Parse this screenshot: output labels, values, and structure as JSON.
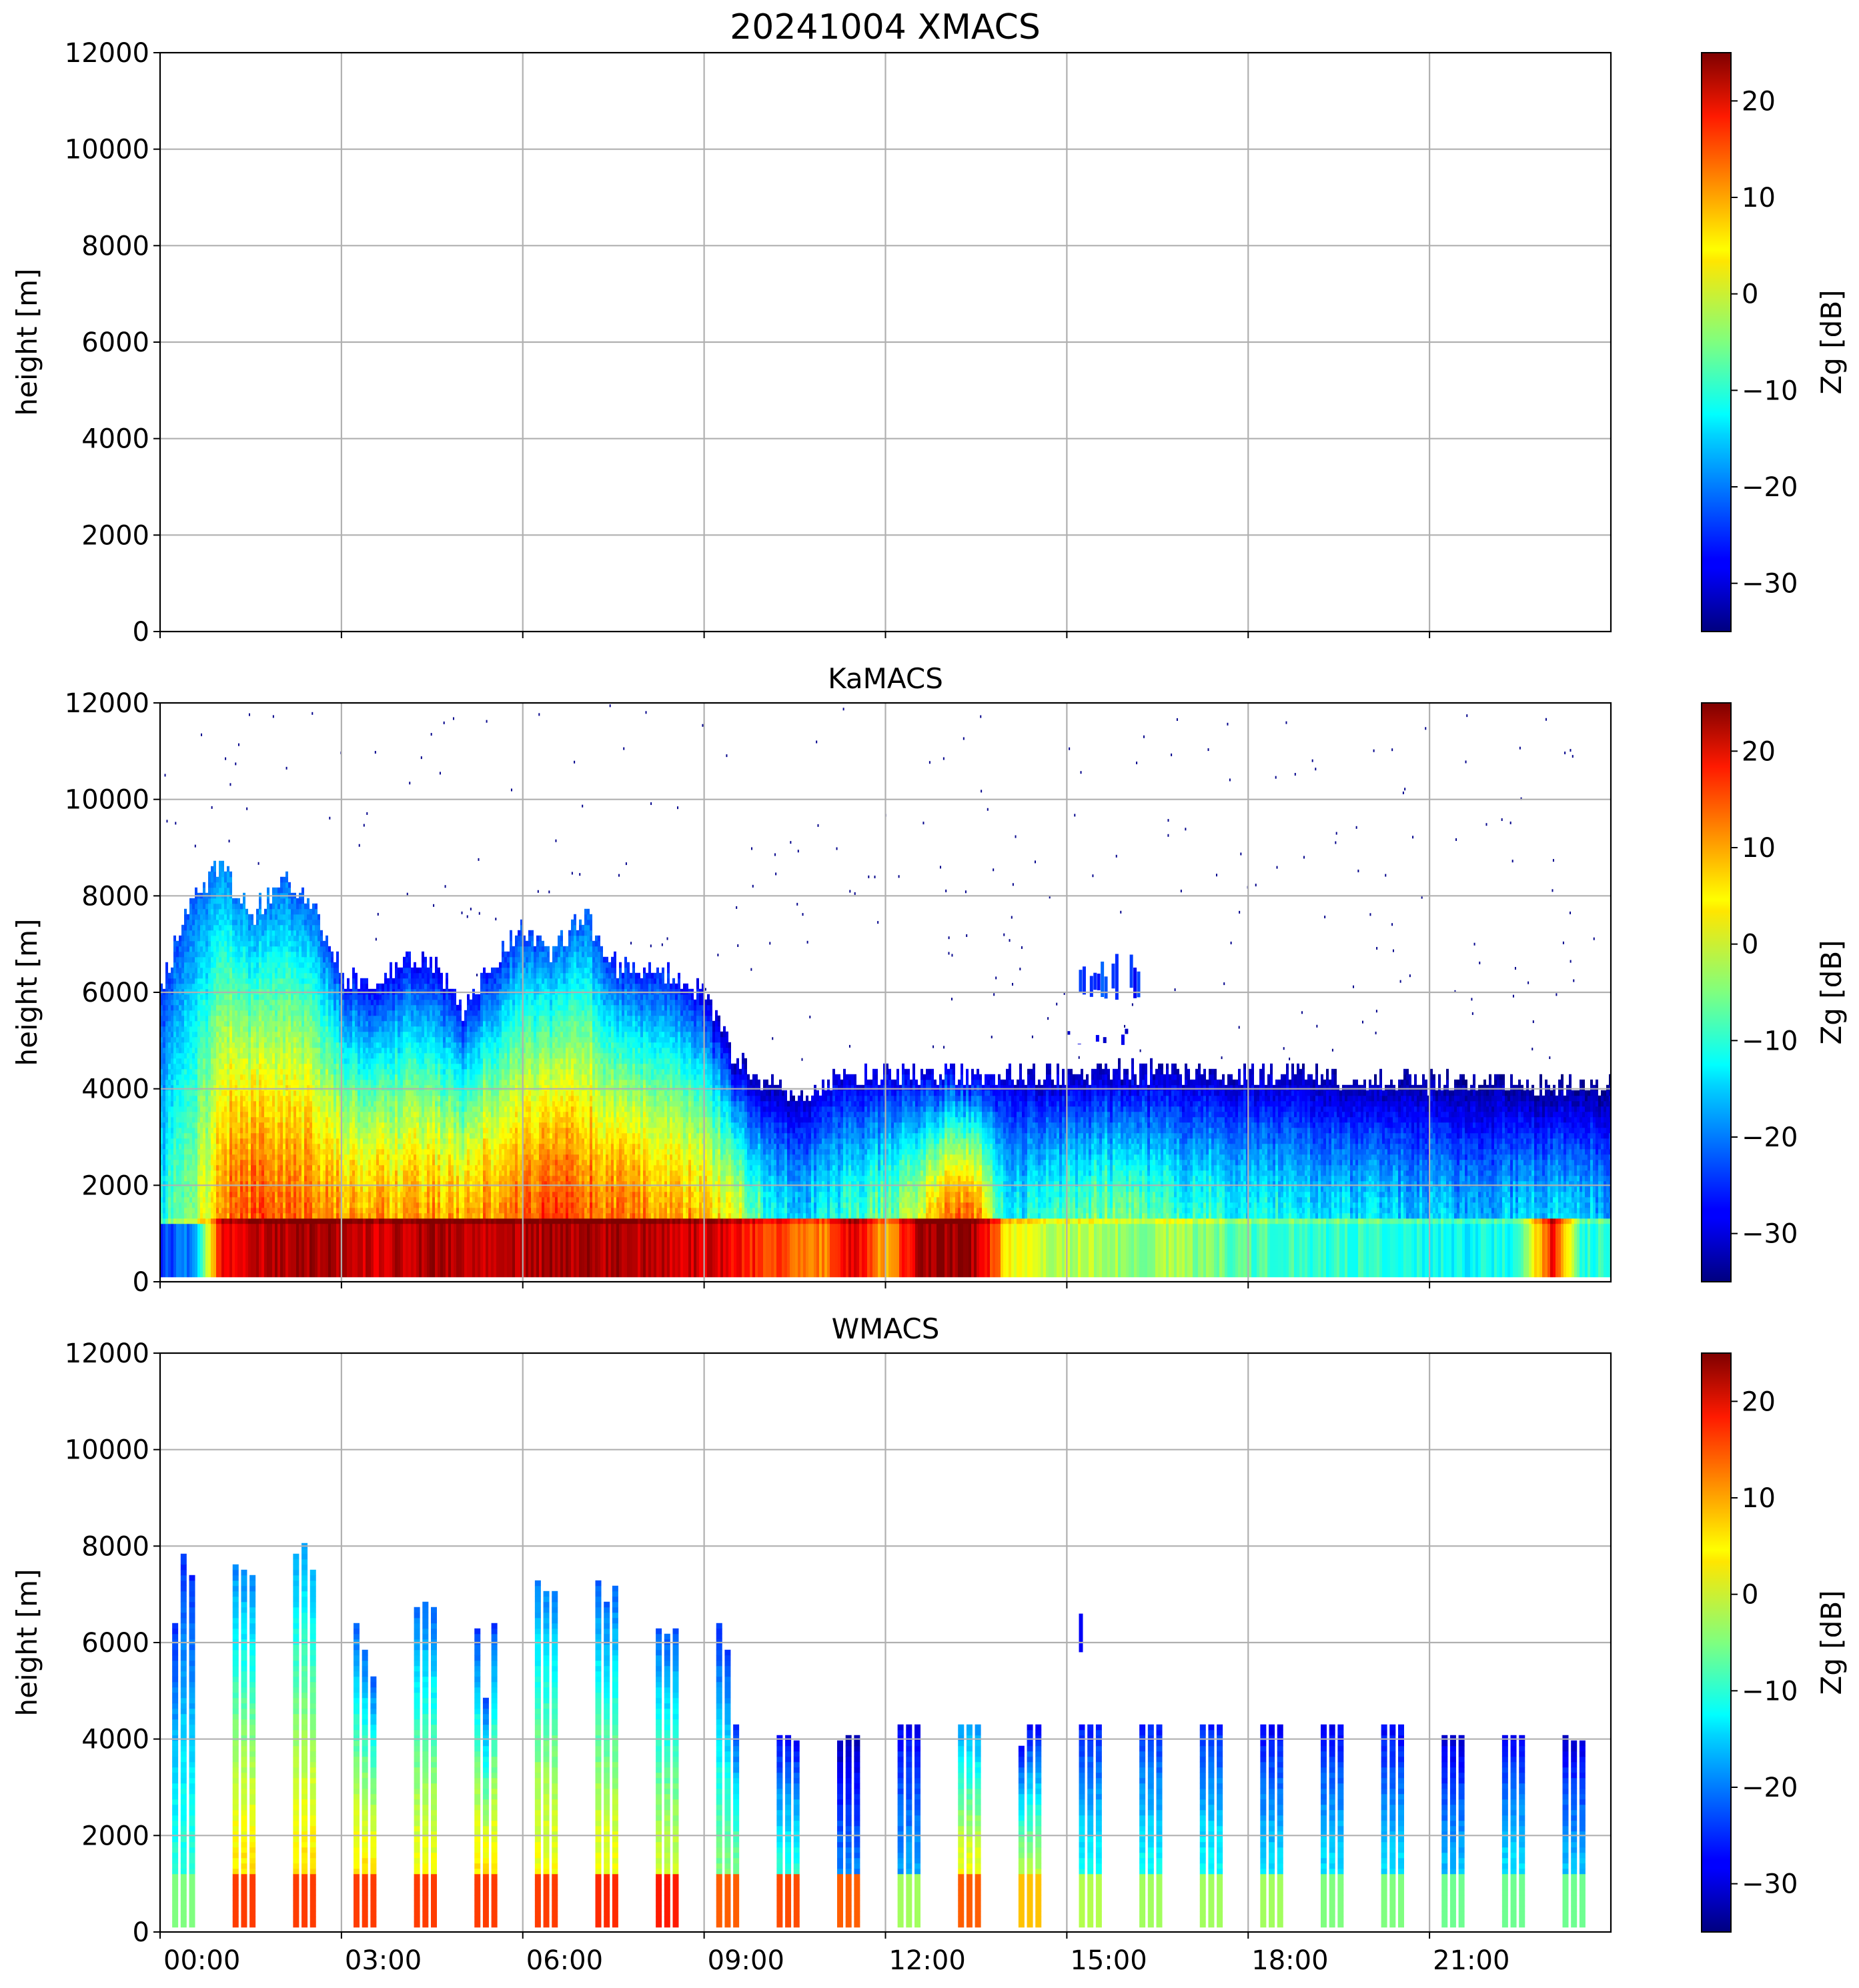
{
  "figure_title": "20241004 XMACS",
  "chart_data": [
    {
      "type": "heatmap",
      "title": "20241004 XMACS",
      "panel": "XMACS",
      "xlabel": "",
      "ylabel": "height [m]",
      "xlim_hours": [
        0,
        24
      ],
      "ylim": [
        0,
        12000
      ],
      "yticks": [
        0,
        2000,
        4000,
        6000,
        8000,
        10000,
        12000
      ],
      "ytick_labels": [
        "0",
        "2000",
        "4000",
        "6000",
        "8000",
        "10000",
        "12000"
      ],
      "xticks_hours": [
        0,
        3,
        6,
        9,
        12,
        15,
        18,
        21
      ],
      "xtick_labels": [],
      "grid": true,
      "has_data": false,
      "colorbar": {
        "label": "Zg [dB]",
        "colormap": "jet",
        "range": [
          -35,
          25
        ],
        "ticks": [
          20,
          10,
          0,
          -10,
          -20,
          -30
        ],
        "tick_labels": [
          "20",
          "10",
          "0",
          "−10",
          "−20",
          "−30"
        ]
      }
    },
    {
      "type": "heatmap",
      "title": "KaMACS",
      "panel": "KaMACS",
      "xlabel": "",
      "ylabel": "height [m]",
      "xlim_hours": [
        0,
        24
      ],
      "ylim": [
        0,
        12000
      ],
      "yticks": [
        0,
        2000,
        4000,
        6000,
        8000,
        10000,
        12000
      ],
      "ytick_labels": [
        "0",
        "2000",
        "4000",
        "6000",
        "8000",
        "10000",
        "12000"
      ],
      "xticks_hours": [
        0,
        3,
        6,
        9,
        12,
        15,
        18,
        21
      ],
      "xtick_labels": [],
      "grid": true,
      "has_data": true,
      "profile_note": "approximate echo-top height (m) and reflectivity (dB) at key levels, sampled every 0.5 h",
      "time_hours": [
        0.0,
        0.5,
        1.0,
        1.5,
        2.0,
        2.5,
        3.0,
        3.5,
        4.0,
        4.5,
        5.0,
        5.5,
        6.0,
        6.5,
        7.0,
        7.5,
        8.0,
        8.5,
        9.0,
        9.5,
        10.0,
        10.5,
        11.0,
        11.5,
        12.0,
        12.5,
        13.0,
        13.5,
        14.0,
        14.5,
        15.0,
        15.5,
        16.0,
        16.5,
        17.0,
        17.5,
        18.0,
        18.5,
        19.0,
        19.5,
        20.0,
        20.5,
        21.0,
        21.5,
        22.0,
        22.5,
        23.0,
        23.5
      ],
      "echo_top_m": [
        6100,
        7900,
        8600,
        7500,
        8400,
        7800,
        6300,
        6100,
        6600,
        6500,
        5600,
        6600,
        7300,
        6800,
        7600,
        6500,
        6400,
        6300,
        5900,
        4600,
        4000,
        3900,
        4100,
        4200,
        4300,
        4300,
        4300,
        4200,
        4200,
        4200,
        4300,
        4300,
        4300,
        4300,
        4300,
        4250,
        4250,
        4250,
        4250,
        4200,
        4200,
        4150,
        4100,
        4050,
        4050,
        4000,
        4000,
        4000
      ],
      "z_low_dB": [
        -25,
        -20,
        18,
        20,
        22,
        22,
        22,
        20,
        22,
        22,
        21,
        21,
        22,
        22,
        23,
        22,
        22,
        21,
        20,
        18,
        14,
        12,
        10,
        20,
        6,
        22,
        24,
        22,
        4,
        -2,
        -2,
        -2,
        -4,
        -3,
        -4,
        -6,
        -8,
        -8,
        -10,
        -10,
        -10,
        -10,
        -12,
        -12,
        -12,
        -10,
        18,
        -10
      ],
      "z_mid_dB": [
        -12,
        -5,
        10,
        12,
        12,
        10,
        8,
        8,
        8,
        8,
        8,
        10,
        12,
        14,
        12,
        10,
        10,
        8,
        6,
        2,
        -10,
        -15,
        -12,
        -8,
        -6,
        0,
        10,
        12,
        -14,
        -10,
        -8,
        -6,
        -6,
        -8,
        -10,
        -10,
        -12,
        -12,
        -14,
        -14,
        -14,
        -14,
        -16,
        -16,
        -16,
        -15,
        -14,
        -16
      ],
      "z_top_dB": [
        -25,
        -22,
        -20,
        -20,
        -22,
        -22,
        -26,
        -28,
        -28,
        -28,
        -28,
        -26,
        -24,
        -22,
        -22,
        -26,
        -26,
        -26,
        -30,
        -32,
        -33,
        -32,
        -30,
        -30,
        -30,
        -30,
        -30,
        -30,
        -30,
        -32,
        -32,
        -32,
        -32,
        -32,
        -32,
        -32,
        -32,
        -32,
        -33,
        -33,
        -33,
        -33,
        -33,
        -34,
        -34,
        -34,
        -34,
        -34
      ],
      "bright_band_m": 1150,
      "upper_cloud_fragments": [
        {
          "t_start_hours": 15.2,
          "t_end_hours": 16.4,
          "z_bottom_m": 5800,
          "z_top_m": 6800,
          "dB": -25
        },
        {
          "t_start_hours": 15.0,
          "t_end_hours": 16.1,
          "z_bottom_m": 4900,
          "z_top_m": 5300,
          "dB": -30
        }
      ],
      "colorbar": {
        "label": "Zg [dB]",
        "colormap": "jet",
        "range": [
          -35,
          25
        ],
        "ticks": [
          20,
          10,
          0,
          -10,
          -20,
          -30
        ],
        "tick_labels": [
          "20",
          "10",
          "0",
          "−10",
          "−20",
          "−30"
        ]
      }
    },
    {
      "type": "heatmap",
      "title": "WMACS",
      "panel": "WMACS",
      "xlabel": "",
      "ylabel": "height [m]",
      "xlim_hours": [
        0,
        24
      ],
      "ylim": [
        0,
        12000
      ],
      "yticks": [
        0,
        2000,
        4000,
        6000,
        8000,
        10000,
        12000
      ],
      "ytick_labels": [
        "0",
        "2000",
        "4000",
        "6000",
        "8000",
        "10000",
        "12000"
      ],
      "xticks_hours": [
        0,
        3,
        6,
        9,
        12,
        15,
        18,
        21
      ],
      "xtick_labels": [
        "00:00",
        "03:00",
        "06:00",
        "09:00",
        "12:00",
        "15:00",
        "18:00",
        "21:00"
      ],
      "grid": true,
      "has_data": true,
      "profile_note": "hourly scan groups of 3 short profiles; top height (m) and reflectivity below/above melting layer",
      "group_start_hours": [
        0.2,
        1.2,
        2.2,
        3.2,
        4.2,
        5.2,
        6.2,
        7.2,
        8.2,
        9.2,
        10.2,
        11.2,
        12.2,
        13.2,
        14.2,
        15.2,
        16.2,
        17.2,
        18.2,
        19.2,
        20.2,
        21.2,
        22.2,
        23.2
      ],
      "group_tops_m": [
        [
          6300,
          7800,
          7300
        ],
        [
          7600,
          7500,
          7300
        ],
        [
          7800,
          8000,
          7500
        ],
        [
          6300,
          5800,
          5200
        ],
        [
          6700,
          6800,
          6700
        ],
        [
          6200,
          4800,
          6300
        ],
        [
          7200,
          7000,
          7000
        ],
        [
          7200,
          6800,
          7100
        ],
        [
          6200,
          6100,
          6200
        ],
        [
          6300,
          5800,
          4300
        ],
        [
          4000,
          4000,
          3900
        ],
        [
          3900,
          4000,
          4000
        ],
        [
          4200,
          4200,
          4200
        ],
        [
          4300,
          4300,
          4200
        ],
        [
          3800,
          4200,
          4200
        ],
        [
          4200,
          4200,
          4200
        ],
        [
          4300,
          4300,
          4200
        ],
        [
          4250,
          4250,
          4250
        ],
        [
          4200,
          4200,
          4200
        ],
        [
          4200,
          4200,
          4200
        ],
        [
          4250,
          4250,
          4200
        ],
        [
          4000,
          4000,
          4000
        ],
        [
          4000,
          4000,
          4000
        ],
        [
          4000,
          3900,
          3900
        ]
      ],
      "group_low_dB": [
        -5,
        14,
        14,
        14,
        14,
        14,
        14,
        15,
        16,
        12,
        13,
        12,
        -3,
        12,
        6,
        -2,
        -3,
        -3,
        -3,
        -5,
        -5,
        -6,
        -6,
        -6
      ],
      "group_mid_dB": [
        -10,
        4,
        4,
        4,
        2,
        4,
        2,
        2,
        0,
        -5,
        -10,
        -20,
        -18,
        2,
        -2,
        -12,
        -12,
        -12,
        -14,
        -14,
        -14,
        -16,
        -14,
        -16
      ],
      "group_top_dB": [
        -25,
        -20,
        -18,
        -22,
        -22,
        -24,
        -20,
        -22,
        -22,
        -25,
        -28,
        -32,
        -28,
        -20,
        -28,
        -26,
        -26,
        -26,
        -28,
        -28,
        -28,
        -30,
        -28,
        -30
      ],
      "melting_layer_m": 1150,
      "small_fragments": [
        {
          "t_hours": 15.2,
          "z_bottom_m": 5800,
          "z_top_m": 6600,
          "dB": -28
        }
      ],
      "colorbar": {
        "label": "Zg [dB]",
        "colormap": "jet",
        "range": [
          -35,
          25
        ],
        "ticks": [
          20,
          10,
          0,
          -10,
          -20,
          -30
        ],
        "tick_labels": [
          "20",
          "10",
          "0",
          "−10",
          "−20",
          "−30"
        ]
      }
    }
  ]
}
